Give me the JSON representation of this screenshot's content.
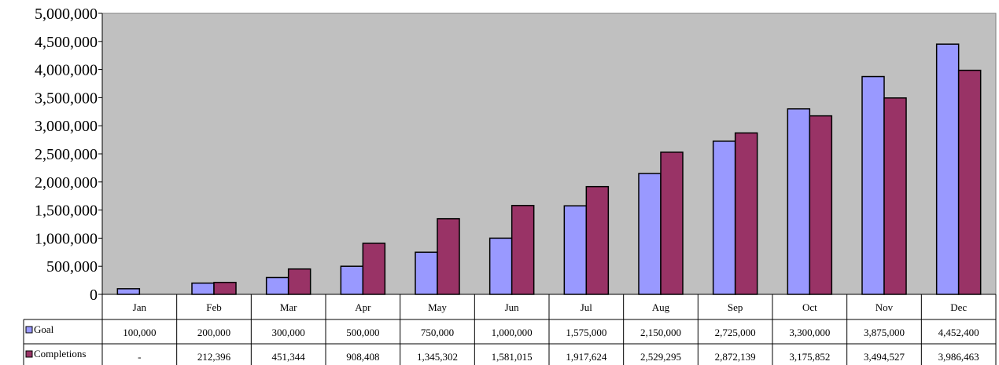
{
  "chart_data": {
    "type": "bar",
    "categories": [
      "Jan",
      "Feb",
      "Mar",
      "Apr",
      "May",
      "Jun",
      "Jul",
      "Aug",
      "Sep",
      "Oct",
      "Nov",
      "Dec"
    ],
    "series": [
      {
        "name": "Goal",
        "color": "#9999ff",
        "values": [
          100000,
          200000,
          300000,
          500000,
          750000,
          1000000,
          1575000,
          2150000,
          2725000,
          3300000,
          3875000,
          4452400
        ],
        "labels": [
          "100,000",
          "200,000",
          "300,000",
          "500,000",
          "750,000",
          "1,000,000",
          "1,575,000",
          "2,150,000",
          "2,725,000",
          "3,300,000",
          "3,875,000",
          "4,452,400"
        ]
      },
      {
        "name": "Completions",
        "color": "#993366",
        "values": [
          0,
          212396,
          451344,
          908408,
          1345302,
          1581015,
          1917624,
          2529295,
          2872139,
          3175852,
          3494527,
          3986463
        ],
        "labels": [
          "-",
          "212,396",
          "451,344",
          "908,408",
          "1,345,302",
          "1,581,015",
          "1,917,624",
          "2,529,295",
          "2,872,139",
          "3,175,852",
          "3,494,527",
          "3,986,463"
        ]
      }
    ],
    "ylim": [
      0,
      5000000
    ],
    "yticks": [
      "0",
      "500,000",
      "1,000,000",
      "1,500,000",
      "2,000,000",
      "2,500,000",
      "3,000,000",
      "3,500,000",
      "4,000,000",
      "4,500,000",
      "5,000,000"
    ],
    "plot_background": "#c0c0c0",
    "grid": false,
    "legend": "data-table"
  }
}
